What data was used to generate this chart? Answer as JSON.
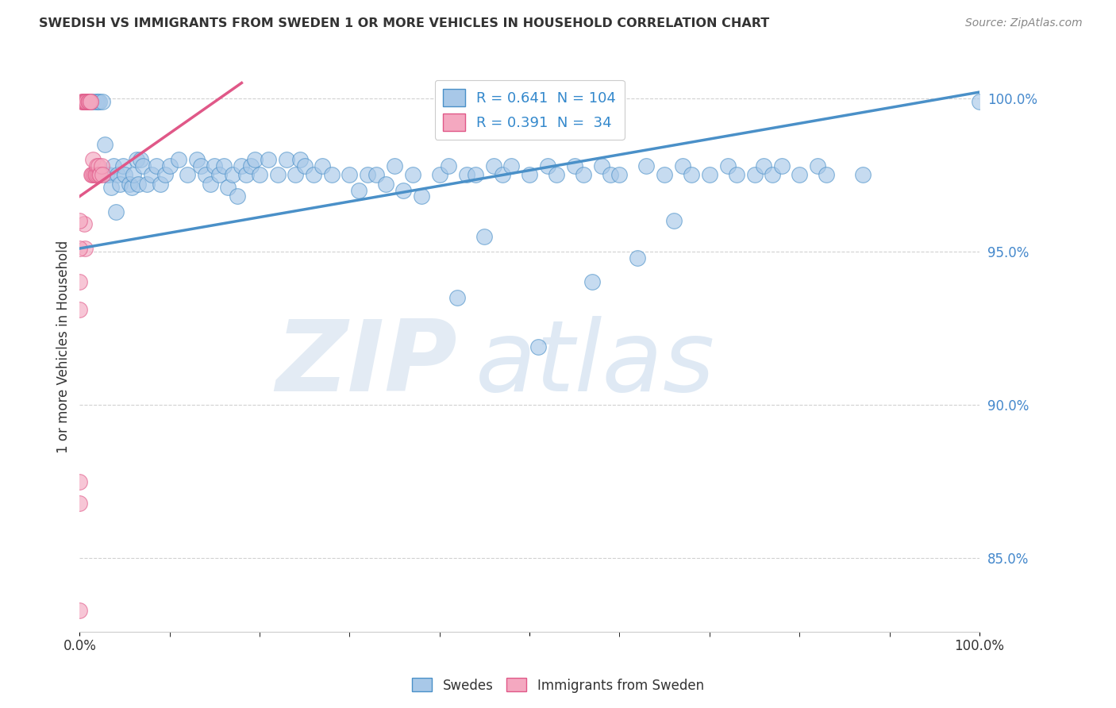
{
  "title": "SWEDISH VS IMMIGRANTS FROM SWEDEN 1 OR MORE VEHICLES IN HOUSEHOLD CORRELATION CHART",
  "source": "Source: ZipAtlas.com",
  "ylabel": "1 or more Vehicles in Household",
  "xlim": [
    0.0,
    1.0
  ],
  "ylim": [
    0.826,
    1.012
  ],
  "yticks": [
    0.85,
    0.9,
    0.95,
    1.0
  ],
  "ytick_labels": [
    "85.0%",
    "90.0%",
    "95.0%",
    "100.0%"
  ],
  "xticks": [
    0.0,
    0.5,
    1.0
  ],
  "xtick_labels": [
    "0.0%",
    "",
    "100.0%"
  ],
  "legend_labels": [
    "Swedes",
    "Immigrants from Sweden"
  ],
  "blue_R": 0.641,
  "blue_N": 104,
  "pink_R": 0.391,
  "pink_N": 34,
  "blue_color": "#a8c8e8",
  "pink_color": "#f4a8c0",
  "blue_line_color": "#4a90c8",
  "pink_line_color": "#e05888",
  "watermark_zip": "ZIP",
  "watermark_atlas": "atlas",
  "blue_trend": [
    0.0,
    0.951,
    1.0,
    1.002
  ],
  "pink_trend": [
    0.0,
    0.968,
    0.18,
    1.005
  ],
  "blue_dots": [
    [
      0.005,
      0.999
    ],
    [
      0.01,
      0.999
    ],
    [
      0.01,
      0.999
    ],
    [
      0.015,
      0.999
    ],
    [
      0.018,
      0.999
    ],
    [
      0.02,
      0.999
    ],
    [
      0.022,
      0.999
    ],
    [
      0.025,
      0.999
    ],
    [
      0.028,
      0.985
    ],
    [
      0.03,
      0.975
    ],
    [
      0.032,
      0.975
    ],
    [
      0.035,
      0.971
    ],
    [
      0.038,
      0.978
    ],
    [
      0.04,
      0.963
    ],
    [
      0.042,
      0.975
    ],
    [
      0.045,
      0.972
    ],
    [
      0.048,
      0.978
    ],
    [
      0.05,
      0.975
    ],
    [
      0.055,
      0.972
    ],
    [
      0.058,
      0.971
    ],
    [
      0.06,
      0.975
    ],
    [
      0.063,
      0.98
    ],
    [
      0.065,
      0.972
    ],
    [
      0.068,
      0.98
    ],
    [
      0.07,
      0.978
    ],
    [
      0.075,
      0.972
    ],
    [
      0.08,
      0.975
    ],
    [
      0.085,
      0.978
    ],
    [
      0.09,
      0.972
    ],
    [
      0.095,
      0.975
    ],
    [
      0.1,
      0.978
    ],
    [
      0.11,
      0.98
    ],
    [
      0.12,
      0.975
    ],
    [
      0.13,
      0.98
    ],
    [
      0.135,
      0.978
    ],
    [
      0.14,
      0.975
    ],
    [
      0.145,
      0.972
    ],
    [
      0.15,
      0.978
    ],
    [
      0.155,
      0.975
    ],
    [
      0.16,
      0.978
    ],
    [
      0.165,
      0.971
    ],
    [
      0.17,
      0.975
    ],
    [
      0.175,
      0.968
    ],
    [
      0.18,
      0.978
    ],
    [
      0.185,
      0.975
    ],
    [
      0.19,
      0.978
    ],
    [
      0.195,
      0.98
    ],
    [
      0.2,
      0.975
    ],
    [
      0.21,
      0.98
    ],
    [
      0.22,
      0.975
    ],
    [
      0.23,
      0.98
    ],
    [
      0.24,
      0.975
    ],
    [
      0.245,
      0.98
    ],
    [
      0.25,
      0.978
    ],
    [
      0.26,
      0.975
    ],
    [
      0.27,
      0.978
    ],
    [
      0.28,
      0.975
    ],
    [
      0.3,
      0.975
    ],
    [
      0.31,
      0.97
    ],
    [
      0.32,
      0.975
    ],
    [
      0.33,
      0.975
    ],
    [
      0.34,
      0.972
    ],
    [
      0.35,
      0.978
    ],
    [
      0.36,
      0.97
    ],
    [
      0.37,
      0.975
    ],
    [
      0.38,
      0.968
    ],
    [
      0.4,
      0.975
    ],
    [
      0.41,
      0.978
    ],
    [
      0.42,
      0.935
    ],
    [
      0.43,
      0.975
    ],
    [
      0.44,
      0.975
    ],
    [
      0.45,
      0.955
    ],
    [
      0.46,
      0.978
    ],
    [
      0.47,
      0.975
    ],
    [
      0.48,
      0.978
    ],
    [
      0.5,
      0.975
    ],
    [
      0.51,
      0.919
    ],
    [
      0.52,
      0.978
    ],
    [
      0.53,
      0.975
    ],
    [
      0.55,
      0.978
    ],
    [
      0.56,
      0.975
    ],
    [
      0.57,
      0.94
    ],
    [
      0.58,
      0.978
    ],
    [
      0.59,
      0.975
    ],
    [
      0.6,
      0.975
    ],
    [
      0.62,
      0.948
    ],
    [
      0.63,
      0.978
    ],
    [
      0.65,
      0.975
    ],
    [
      0.66,
      0.96
    ],
    [
      0.67,
      0.978
    ],
    [
      0.68,
      0.975
    ],
    [
      0.7,
      0.975
    ],
    [
      0.72,
      0.978
    ],
    [
      0.73,
      0.975
    ],
    [
      0.75,
      0.975
    ],
    [
      0.76,
      0.978
    ],
    [
      0.77,
      0.975
    ],
    [
      0.78,
      0.978
    ],
    [
      0.8,
      0.975
    ],
    [
      0.82,
      0.978
    ],
    [
      0.83,
      0.975
    ],
    [
      0.87,
      0.975
    ],
    [
      1.0,
      0.999
    ]
  ],
  "pink_dots": [
    [
      0.002,
      0.999
    ],
    [
      0.003,
      0.999
    ],
    [
      0.004,
      0.999
    ],
    [
      0.005,
      0.999
    ],
    [
      0.006,
      0.999
    ],
    [
      0.007,
      0.999
    ],
    [
      0.008,
      0.999
    ],
    [
      0.009,
      0.999
    ],
    [
      0.01,
      0.999
    ],
    [
      0.01,
      0.999
    ],
    [
      0.012,
      0.999
    ],
    [
      0.012,
      0.999
    ],
    [
      0.013,
      0.975
    ],
    [
      0.014,
      0.975
    ],
    [
      0.015,
      0.98
    ],
    [
      0.016,
      0.975
    ],
    [
      0.017,
      0.975
    ],
    [
      0.018,
      0.975
    ],
    [
      0.019,
      0.978
    ],
    [
      0.02,
      0.975
    ],
    [
      0.021,
      0.978
    ],
    [
      0.022,
      0.975
    ],
    [
      0.023,
      0.975
    ],
    [
      0.024,
      0.978
    ],
    [
      0.025,
      0.975
    ],
    [
      0.005,
      0.959
    ],
    [
      0.006,
      0.951
    ],
    [
      0.0,
      0.96
    ],
    [
      0.0,
      0.951
    ],
    [
      0.0,
      0.94
    ],
    [
      0.0,
      0.931
    ],
    [
      0.0,
      0.875
    ],
    [
      0.0,
      0.868
    ],
    [
      0.0,
      0.833
    ]
  ]
}
